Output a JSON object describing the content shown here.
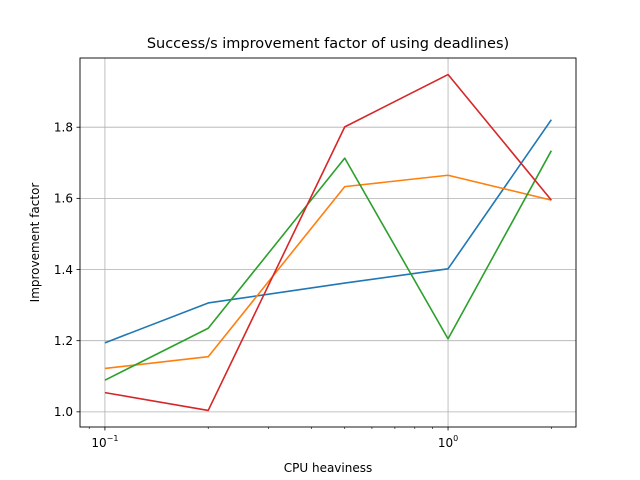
{
  "chart_data": {
    "type": "line",
    "title": "Success/s improvement factor of using deadlines)",
    "xlabel": "CPU heaviness",
    "ylabel": "Improvement factor",
    "xscale": "log",
    "xlim": [
      0.0846,
      2.36
    ],
    "ylim": [
      0.9574,
      1.9945
    ],
    "grid": true,
    "x_ticks": [
      {
        "value": 0.1,
        "base": "10",
        "exp": "−1"
      },
      {
        "value": 1,
        "base": "10",
        "exp": "0"
      }
    ],
    "y_ticks": [
      {
        "value": 1.0,
        "label": "1.0"
      },
      {
        "value": 1.2,
        "label": "1.2"
      },
      {
        "value": 1.4,
        "label": "1.4"
      },
      {
        "value": 1.6,
        "label": "1.6"
      },
      {
        "value": 1.8,
        "label": "1.8"
      }
    ],
    "x": [
      0.1,
      0.2,
      0.5,
      1,
      2
    ],
    "series": [
      {
        "color": "#1f77b4",
        "values": [
          1.194,
          1.306,
          1.362,
          1.402,
          1.821
        ]
      },
      {
        "color": "#ff7f0e",
        "values": [
          1.122,
          1.155,
          1.633,
          1.665,
          1.595
        ]
      },
      {
        "color": "#2ca02c",
        "values": [
          1.089,
          1.235,
          1.713,
          1.205,
          1.734
        ]
      },
      {
        "color": "#d62728",
        "values": [
          1.054,
          1.004,
          1.801,
          1.948,
          1.595
        ]
      }
    ]
  }
}
